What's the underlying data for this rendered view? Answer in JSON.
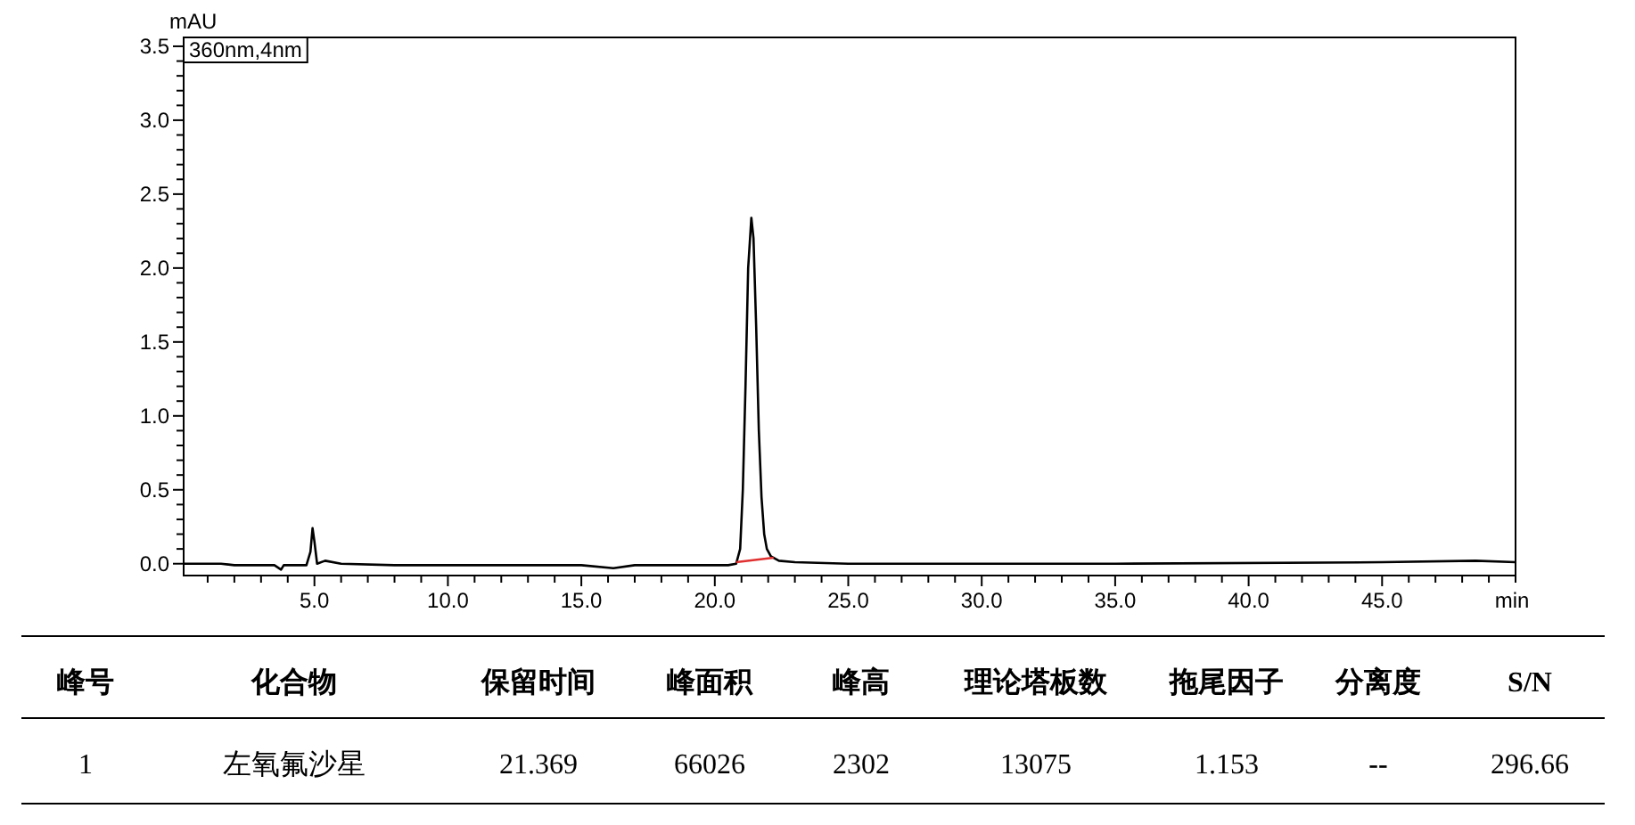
{
  "chart_data": {
    "type": "line",
    "xlabel": "min",
    "ylabel": "mAU",
    "xlim": [
      0.1,
      50
    ],
    "ylim": [
      -0.08,
      3.56
    ],
    "xticks": [
      {
        "value": 1,
        "label": null
      },
      {
        "value": 2,
        "label": null
      },
      {
        "value": 3,
        "label": null
      },
      {
        "value": 4,
        "label": null
      },
      {
        "value": 5,
        "label": "5.0"
      },
      {
        "value": 6,
        "label": null
      },
      {
        "value": 7,
        "label": null
      },
      {
        "value": 8,
        "label": null
      },
      {
        "value": 9,
        "label": null
      },
      {
        "value": 10,
        "label": "10.0"
      },
      {
        "value": 11,
        "label": null
      },
      {
        "value": 12,
        "label": null
      },
      {
        "value": 13,
        "label": null
      },
      {
        "value": 14,
        "label": null
      },
      {
        "value": 15,
        "label": "15.0"
      },
      {
        "value": 16,
        "label": null
      },
      {
        "value": 17,
        "label": null
      },
      {
        "value": 18,
        "label": null
      },
      {
        "value": 19,
        "label": null
      },
      {
        "value": 20,
        "label": "20.0"
      },
      {
        "value": 21,
        "label": null
      },
      {
        "value": 22,
        "label": null
      },
      {
        "value": 23,
        "label": null
      },
      {
        "value": 24,
        "label": null
      },
      {
        "value": 25,
        "label": "25.0"
      },
      {
        "value": 26,
        "label": null
      },
      {
        "value": 27,
        "label": null
      },
      {
        "value": 28,
        "label": null
      },
      {
        "value": 29,
        "label": null
      },
      {
        "value": 30,
        "label": "30.0"
      },
      {
        "value": 31,
        "label": null
      },
      {
        "value": 32,
        "label": null
      },
      {
        "value": 33,
        "label": null
      },
      {
        "value": 34,
        "label": null
      },
      {
        "value": 35,
        "label": "35.0"
      },
      {
        "value": 36,
        "label": null
      },
      {
        "value": 37,
        "label": null
      },
      {
        "value": 38,
        "label": null
      },
      {
        "value": 39,
        "label": null
      },
      {
        "value": 40,
        "label": "40.0"
      },
      {
        "value": 41,
        "label": null
      },
      {
        "value": 42,
        "label": null
      },
      {
        "value": 43,
        "label": null
      },
      {
        "value": 44,
        "label": null
      },
      {
        "value": 45,
        "label": "45.0"
      },
      {
        "value": 46,
        "label": null
      },
      {
        "value": 47,
        "label": null
      },
      {
        "value": 48,
        "label": null
      },
      {
        "value": 49,
        "label": null
      },
      {
        "value": 50,
        "label": null
      }
    ],
    "yticks": [
      {
        "value": 0,
        "label": "0.0"
      },
      {
        "value": 0.1,
        "label": null
      },
      {
        "value": 0.2,
        "label": null
      },
      {
        "value": 0.3,
        "label": null
      },
      {
        "value": 0.4,
        "label": null
      },
      {
        "value": 0.5,
        "label": "0.5"
      },
      {
        "value": 0.6,
        "label": null
      },
      {
        "value": 0.7,
        "label": null
      },
      {
        "value": 0.8,
        "label": null
      },
      {
        "value": 0.9,
        "label": null
      },
      {
        "value": 1,
        "label": "1.0"
      },
      {
        "value": 1.1,
        "label": null
      },
      {
        "value": 1.2,
        "label": null
      },
      {
        "value": 1.3,
        "label": null
      },
      {
        "value": 1.4,
        "label": null
      },
      {
        "value": 1.5,
        "label": "1.5"
      },
      {
        "value": 1.6,
        "label": null
      },
      {
        "value": 1.7,
        "label": null
      },
      {
        "value": 1.8,
        "label": null
      },
      {
        "value": 1.9,
        "label": null
      },
      {
        "value": 2,
        "label": "2.0"
      },
      {
        "value": 2.1,
        "label": null
      },
      {
        "value": 2.2,
        "label": null
      },
      {
        "value": 2.3,
        "label": null
      },
      {
        "value": 2.4,
        "label": null
      },
      {
        "value": 2.5,
        "label": "2.5"
      },
      {
        "value": 2.6,
        "label": null
      },
      {
        "value": 2.7,
        "label": null
      },
      {
        "value": 2.8,
        "label": null
      },
      {
        "value": 2.9,
        "label": null
      },
      {
        "value": 3,
        "label": "3.0"
      },
      {
        "value": 3.1,
        "label": null
      },
      {
        "value": 3.2,
        "label": null
      },
      {
        "value": 3.3,
        "label": null
      },
      {
        "value": 3.4,
        "label": null
      },
      {
        "value": 3.5,
        "label": "3.5"
      }
    ],
    "series": [
      {
        "color": "#000000",
        "x": [
          0.1,
          1.5,
          2.0,
          3.5,
          3.75,
          3.85,
          4.7,
          4.85,
          4.93,
          5.0,
          5.1,
          5.4,
          6,
          8,
          15,
          16.2,
          17,
          20.5,
          20.8,
          20.95,
          21.05,
          21.15,
          21.25,
          21.369,
          21.45,
          21.55,
          21.65,
          21.75,
          21.85,
          21.95,
          22.1,
          22.4,
          23,
          25,
          35,
          45,
          48.5,
          50
        ],
        "values": [
          0.0,
          0.0,
          -0.01,
          -0.01,
          -0.04,
          -0.01,
          -0.01,
          0.08,
          0.24,
          0.15,
          0.0,
          0.02,
          0.0,
          -0.01,
          -0.01,
          -0.03,
          -0.01,
          -0.01,
          0.0,
          0.1,
          0.5,
          1.2,
          2.0,
          2.34,
          2.2,
          1.6,
          0.9,
          0.45,
          0.2,
          0.1,
          0.05,
          0.02,
          0.01,
          0.0,
          0.0,
          0.01,
          0.02,
          0.01
        ]
      },
      {
        "color": "#e03030",
        "x": [
          20.8,
          22.2
        ],
        "values": [
          0.01,
          0.04
        ]
      }
    ],
    "grid": false,
    "annotations": [
      "360nm,4nm",
      "峰号",
      "化合物",
      "保留时间",
      "峰面积",
      "峰高",
      "理论塔板数",
      "拖尾因子",
      "分离度",
      "S/N",
      "1",
      "左氧氟沙星",
      "21.369",
      "66026",
      "2302",
      "13075",
      "1.153",
      "--",
      "296.66"
    ]
  }
}
